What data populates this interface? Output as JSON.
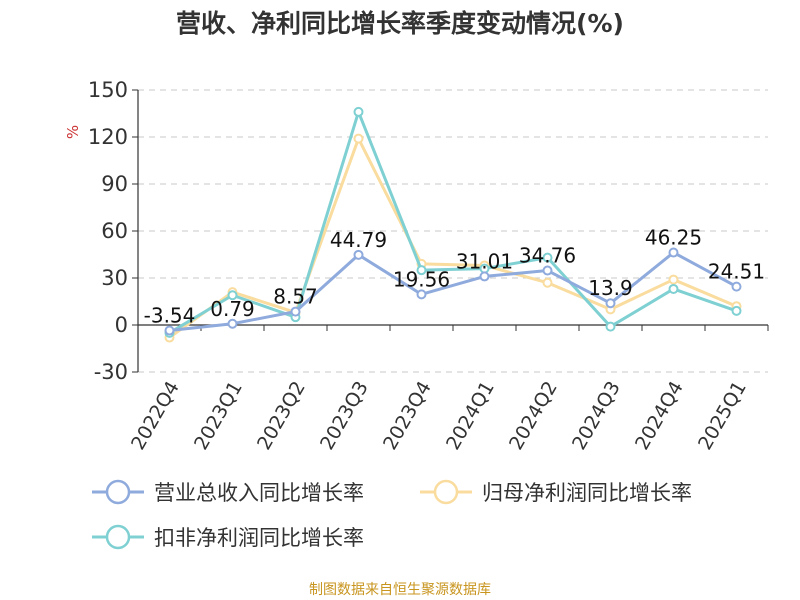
{
  "title": "营收、净利同比增长率季度变动情况(%)",
  "source": "制图数据来自恒生聚源数据库",
  "colors": {
    "revenue": "#8faadc",
    "net_profit": "#f9dc9e",
    "deducted": "#7fd0d2"
  },
  "chart_data": {
    "type": "line",
    "title": "营收、净利同比增长率季度变动情况(%)",
    "ylabel": "%",
    "ylim": [
      -30,
      150
    ],
    "yticks": [
      -30,
      0,
      30,
      60,
      90,
      120,
      150
    ],
    "grid": true,
    "legend_position": "bottom",
    "categories": [
      "2022Q4",
      "2023Q1",
      "2023Q2",
      "2023Q3",
      "2023Q4",
      "2024Q1",
      "2024Q2",
      "2024Q3",
      "2024Q4",
      "2025Q1"
    ],
    "series": [
      {
        "name": "营业总收入同比增长率",
        "values": [
          -3.54,
          0.79,
          8.57,
          44.79,
          19.56,
          31.01,
          34.76,
          13.9,
          46.25,
          24.51
        ],
        "labels": [
          "-3.54",
          "0.79",
          "8.57",
          "44.79",
          "19.56",
          "31.01",
          "34.76",
          "13.9",
          "46.25",
          "24.51"
        ]
      },
      {
        "name": "归母净利润同比增长率",
        "values": [
          -8,
          21,
          8,
          119,
          39,
          38,
          27,
          10,
          29,
          12
        ]
      },
      {
        "name": "扣非净利润同比增长率",
        "values": [
          -5,
          19,
          5,
          136,
          35,
          36,
          43,
          -1,
          23,
          9
        ]
      }
    ]
  }
}
